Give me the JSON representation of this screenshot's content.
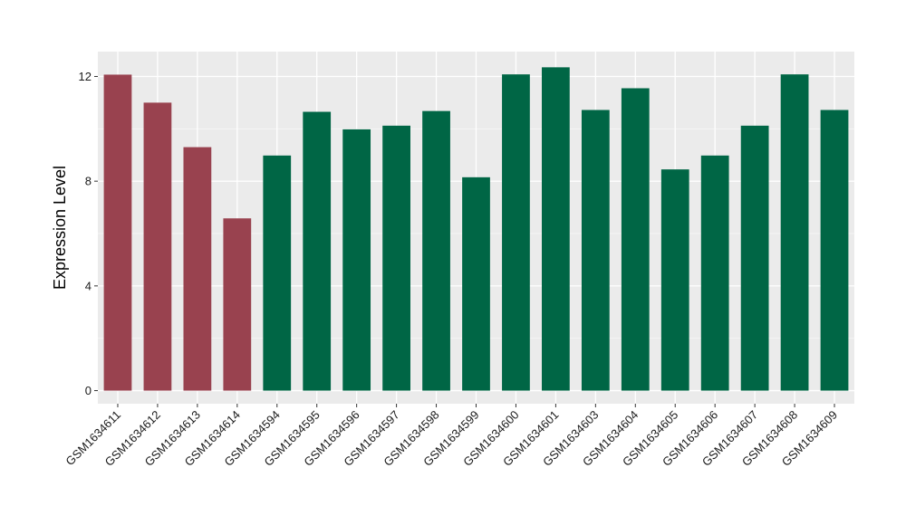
{
  "chart_data": {
    "type": "bar",
    "title": "",
    "xlabel": "",
    "ylabel": "Expression Level",
    "ylim": [
      -0.5,
      12.95
    ],
    "yticks": [
      0,
      4,
      8,
      12
    ],
    "grid": true,
    "panel_background": "#ebebeb",
    "categories": [
      "GSM1634611",
      "GSM1634612",
      "GSM1634613",
      "GSM1634614",
      "GSM1634594",
      "GSM1634595",
      "GSM1634596",
      "GSM1634597",
      "GSM1634598",
      "GSM1634599",
      "GSM1634600",
      "GSM1634601",
      "GSM1634603",
      "GSM1634604",
      "GSM1634605",
      "GSM1634606",
      "GSM1634607",
      "GSM1634608",
      "GSM1634609"
    ],
    "values": [
      12.07,
      11.0,
      9.3,
      6.58,
      8.98,
      10.65,
      9.98,
      10.12,
      10.68,
      8.15,
      12.08,
      12.35,
      10.72,
      11.55,
      8.45,
      8.98,
      10.12,
      12.08,
      10.72
    ],
    "groups": [
      "a",
      "a",
      "a",
      "a",
      "b",
      "b",
      "b",
      "b",
      "b",
      "b",
      "b",
      "b",
      "b",
      "b",
      "b",
      "b",
      "b",
      "b",
      "b"
    ],
    "group_colors": {
      "a": "#99424f",
      "b": "#006645"
    }
  }
}
